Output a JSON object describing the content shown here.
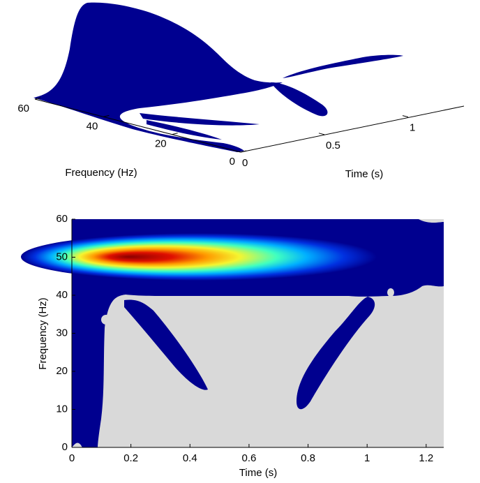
{
  "chart_data": [
    {
      "type": "surface",
      "xlabel": "Time (s)",
      "ylabel": "Frequency (Hz)",
      "xlim": [
        0,
        1.25
      ],
      "xticks": [
        0,
        0.5,
        1
      ],
      "ylim": [
        0,
        60
      ],
      "yticks": [
        0,
        20,
        40,
        60
      ]
    },
    {
      "type": "heatmap",
      "xlabel": "Time (s)",
      "ylabel": "Frequency (Hz)",
      "xlim": [
        0,
        1.25
      ],
      "xticks": [
        0,
        0.2,
        0.4,
        0.6,
        0.8,
        1,
        1.2
      ],
      "ylim": [
        0,
        60
      ],
      "yticks": [
        0,
        10,
        20,
        30,
        40,
        50,
        60
      ]
    }
  ]
}
